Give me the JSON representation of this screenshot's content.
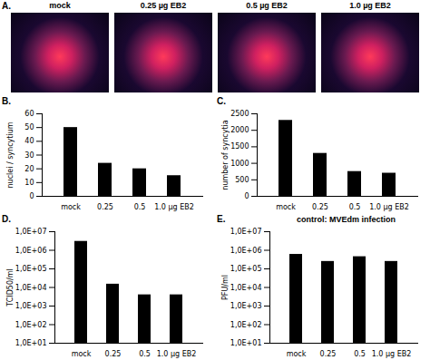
{
  "images": {
    "panel_label": "A.",
    "titles": [
      "mock",
      "0.25 µg EB2",
      "0.5 µg EB2",
      "1.0 µg EB2"
    ]
  },
  "chart_data": [
    {
      "panel_label": "B.",
      "type": "bar",
      "ylabel": "nuclei / syncytium",
      "categories": [
        "mock",
        "0.25",
        "0.5",
        "1.0 µg EB2"
      ],
      "values": [
        50,
        24,
        20,
        15
      ],
      "color": "#000000",
      "ylim": [
        0,
        60
      ],
      "yticks": [
        0,
        10,
        20,
        30,
        40,
        50,
        60
      ]
    },
    {
      "panel_label": "C.",
      "type": "bar",
      "ylabel": "number of syncytia",
      "categories": [
        "mock",
        "0.25",
        "0.5",
        "1.0 µg EB2"
      ],
      "values": [
        2300,
        1300,
        750,
        700
      ],
      "color": "#000000",
      "ylim": [
        0,
        2500
      ],
      "yticks": [
        0,
        500,
        1000,
        1500,
        2000,
        2500
      ]
    },
    {
      "panel_label": "D.",
      "type": "bar",
      "ylabel": "TCID50/ml",
      "log": "y",
      "categories": [
        "mock",
        "0.25",
        "0.5",
        "1.0 µg EB2"
      ],
      "values": [
        3000000,
        15000,
        4000,
        4000
      ],
      "color": "#000000",
      "ylim": [
        10,
        10000000
      ],
      "yticks": [
        {
          "value": 10,
          "label": "1,0E+01"
        },
        {
          "value": 100,
          "label": "1,0E+02"
        },
        {
          "value": 1000,
          "label": "1,0E+03"
        },
        {
          "value": 10000,
          "label": "1,0E+04"
        },
        {
          "value": 100000,
          "label": "1,0E+05"
        },
        {
          "value": 1000000,
          "label": "1,0E+06"
        },
        {
          "value": 10000000,
          "label": "1,0E+07"
        }
      ]
    },
    {
      "panel_label": "E.",
      "type": "bar",
      "title": "control: MVEdm infection",
      "ylabel": "PFU/ml",
      "log": "y",
      "categories": [
        "mock",
        "0.25",
        "0.5",
        "1.0 µg EB2"
      ],
      "values": [
        600000,
        250000,
        450000,
        250000
      ],
      "color": "#000000",
      "ylim": [
        10,
        10000000
      ],
      "yticks": [
        {
          "value": 10,
          "label": "1,0E+01"
        },
        {
          "value": 100,
          "label": "1,0E+02"
        },
        {
          "value": 1000,
          "label": "1,0E+03"
        },
        {
          "value": 10000,
          "label": "1,0E+04"
        },
        {
          "value": 100000,
          "label": "1,0E+05"
        },
        {
          "value": 1000000,
          "label": "1,0E+06"
        },
        {
          "value": 10000000,
          "label": "1,0E+07"
        }
      ]
    }
  ]
}
